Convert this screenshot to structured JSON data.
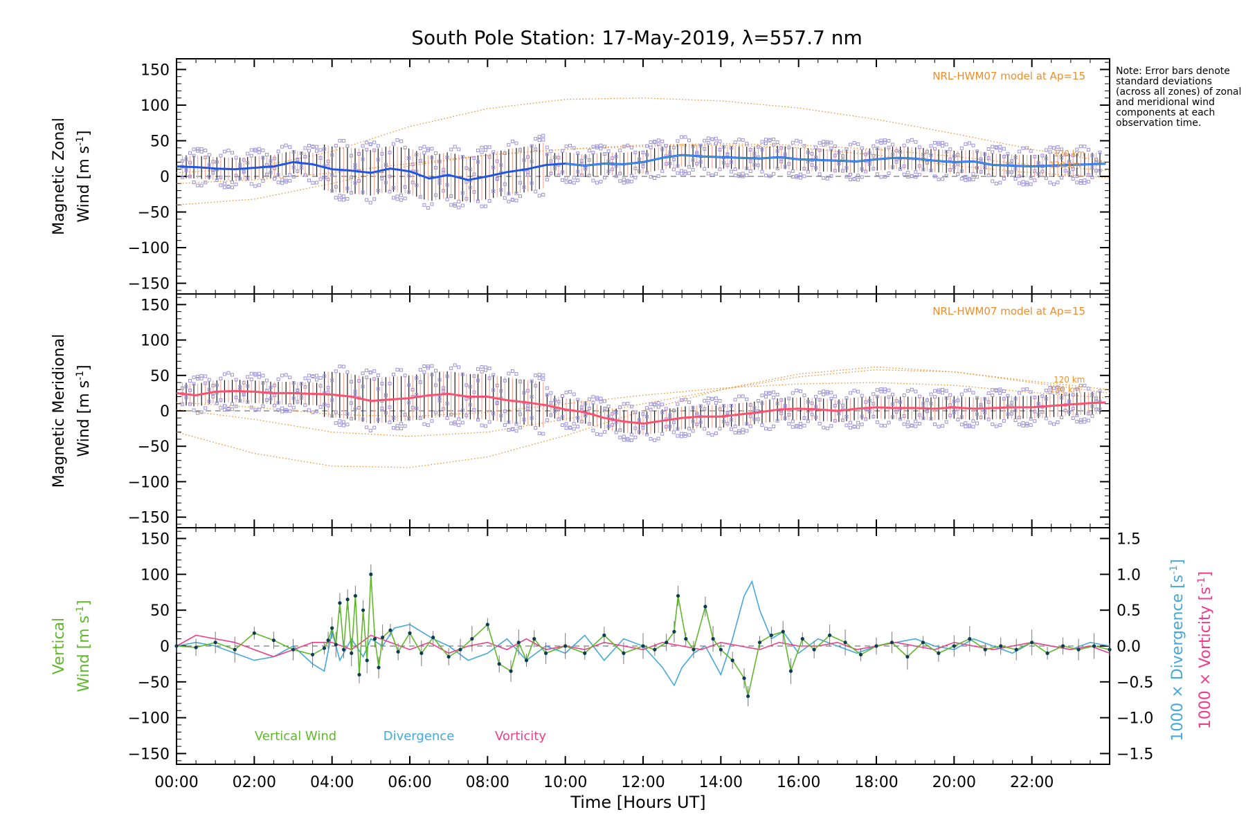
{
  "title": "South Pole Station: 17-May-2019, λ=557.7 nm",
  "note": "Note: Error bars denote standard deviations (across all zones) of zonal and meridional wind components at each observation time.",
  "xlabel": "Time [Hours UT]",
  "xticks": [
    "00:00",
    "02:00",
    "04:00",
    "06:00",
    "08:00",
    "10:00",
    "12:00",
    "14:00",
    "16:00",
    "18:00",
    "20:00",
    "22:00"
  ],
  "yticks": [
    "150",
    "100",
    "50",
    "0",
    "−50",
    "−100",
    "−150"
  ],
  "right_ticks": [
    "1.5",
    "1.0",
    "0.5",
    "0.0",
    "−0.5",
    "−1.0",
    "−1.5"
  ],
  "colors": {
    "zonal_mean": "#1f55e6",
    "zonal_mean_light": "#45b3e6",
    "meridional_mean": "#ff4f6e",
    "model": "#f28c28",
    "zone_points": "#9b92d6",
    "vertical": "#5eb82a",
    "divergence": "#44a8d8",
    "vorticity": "#f03c88",
    "errbar_dark": "#1a1a1a",
    "errbar_light": "#f2a898"
  },
  "chart_data": [
    {
      "type": "line",
      "panel": "zonal",
      "ylabel_line1": "Magnetic Zonal",
      "ylabel_line2": "Wind [m s",
      "ylabel_exp": "-1",
      "ylabel_close": "]",
      "ylim": [
        -165,
        165
      ],
      "xlim": [
        0,
        24
      ],
      "model_label": "NRL-HWM07 model at Ap=15",
      "model_alt_labels": [
        "120 km",
        "130 km"
      ],
      "series": [
        {
          "name": "Zonal mean",
          "x": [
            0,
            0.5,
            1,
            1.5,
            2,
            2.5,
            3,
            3.5,
            4,
            4.5,
            5,
            5.5,
            6,
            6.5,
            7,
            7.5,
            8,
            8.5,
            9,
            9.5,
            10,
            10.5,
            11,
            11.5,
            12,
            12.5,
            13,
            13.5,
            14,
            14.5,
            15,
            15.5,
            16,
            16.5,
            17,
            17.5,
            18,
            18.5,
            19,
            19.5,
            20,
            20.5,
            21,
            21.5,
            22,
            22.5,
            23,
            23.5,
            24
          ],
          "values": [
            14,
            13,
            11,
            10,
            12,
            14,
            20,
            17,
            10,
            8,
            5,
            11,
            7,
            -3,
            2,
            -5,
            0,
            6,
            10,
            16,
            18,
            15,
            18,
            17,
            20,
            26,
            30,
            28,
            27,
            26,
            25,
            27,
            24,
            23,
            22,
            21,
            24,
            26,
            25,
            22,
            20,
            21,
            16,
            15,
            14,
            15,
            16,
            17,
            18
          ]
        },
        {
          "name": "HWM07 120 km",
          "x": [
            0,
            2,
            4,
            6,
            8,
            10,
            12,
            14,
            16,
            18,
            20,
            22,
            24
          ],
          "values": [
            -40,
            -32,
            -10,
            15,
            30,
            38,
            42,
            44,
            40,
            30,
            15,
            5,
            -2
          ]
        },
        {
          "name": "HWM07 130 km",
          "x": [
            0,
            2,
            4,
            6,
            8,
            10,
            12,
            14,
            16,
            18,
            20,
            22,
            24
          ],
          "values": [
            5,
            12,
            35,
            70,
            95,
            108,
            110,
            106,
            96,
            80,
            60,
            38,
            20
          ]
        },
        {
          "name": "HWM07 140 km",
          "x": [
            0,
            2,
            4,
            6,
            8,
            10,
            12,
            14,
            16,
            18,
            20,
            22,
            24
          ],
          "values": [
            -10,
            -5,
            5,
            18,
            30,
            38,
            44,
            46,
            44,
            38,
            28,
            16,
            8
          ]
        }
      ]
    },
    {
      "type": "line",
      "panel": "meridional",
      "ylabel_line1": "Magnetic Meridional",
      "ylabel_line2": "Wind [m s",
      "ylabel_exp": "-1",
      "ylabel_close": "]",
      "ylim": [
        -165,
        165
      ],
      "xlim": [
        0,
        24
      ],
      "model_label": "NRL-HWM07 model at Ap=15",
      "model_alt_labels": [
        "120 km",
        "130 km"
      ],
      "series": [
        {
          "name": "Meridional mean",
          "x": [
            0,
            0.5,
            1,
            1.5,
            2,
            2.5,
            3,
            3.5,
            4,
            4.5,
            5,
            5.5,
            6,
            6.5,
            7,
            7.5,
            8,
            8.5,
            9,
            9.5,
            10,
            10.5,
            11,
            11.5,
            12,
            12.5,
            13,
            13.5,
            14,
            14.5,
            15,
            15.5,
            16,
            16.5,
            17,
            17.5,
            18,
            18.5,
            19,
            19.5,
            20,
            20.5,
            21,
            21.5,
            22,
            22.5,
            23,
            23.5,
            24
          ],
          "values": [
            25,
            22,
            27,
            28,
            27,
            25,
            25,
            24,
            23,
            20,
            14,
            16,
            18,
            22,
            24,
            20,
            20,
            15,
            12,
            8,
            2,
            -2,
            -10,
            -15,
            -18,
            -14,
            -10,
            -8,
            -8,
            -5,
            -2,
            2,
            3,
            2,
            0,
            3,
            5,
            4,
            4,
            3,
            5,
            3,
            4,
            5,
            5,
            7,
            9,
            11,
            12
          ]
        },
        {
          "name": "HWM07 120 km",
          "x": [
            0,
            2,
            4,
            6,
            8,
            10,
            12,
            14,
            16,
            18,
            20,
            22,
            24
          ],
          "values": [
            -30,
            -60,
            -78,
            -80,
            -65,
            -35,
            0,
            30,
            52,
            62,
            55,
            40,
            25
          ]
        },
        {
          "name": "HWM07 130 km",
          "x": [
            0,
            2,
            4,
            6,
            8,
            10,
            12,
            14,
            16,
            18,
            20,
            22,
            24
          ],
          "values": [
            2,
            -12,
            -30,
            -36,
            -30,
            -12,
            10,
            30,
            48,
            58,
            55,
            42,
            30
          ]
        },
        {
          "name": "HWM07 140 km",
          "x": [
            0,
            2,
            4,
            6,
            8,
            10,
            12,
            14,
            16,
            18,
            20,
            22,
            24
          ],
          "values": [
            12,
            5,
            -5,
            -8,
            -2,
            10,
            22,
            32,
            38,
            40,
            36,
            26,
            18
          ]
        }
      ]
    },
    {
      "type": "line",
      "panel": "vertical",
      "ylabel_line1": "Vertical",
      "ylabel_line2": "Wind [m s",
      "ylabel_exp": "-1",
      "ylabel_close": "]",
      "right_label1": "1000 × Divergence [s",
      "right_label2": "1000 × Vorticity [s",
      "right_exp": "-1",
      "right_close": "]",
      "ylim": [
        -165,
        165
      ],
      "y2lim": [
        -1.65,
        1.65
      ],
      "xlim": [
        0,
        24
      ],
      "legend": [
        "Vertical Wind",
        "Divergence",
        "Vorticity"
      ],
      "series": [
        {
          "name": "Vertical Wind",
          "x": [
            0,
            0.5,
            1,
            1.5,
            2,
            2.5,
            3,
            3.5,
            3.8,
            3.9,
            4,
            4.1,
            4.2,
            4.3,
            4.4,
            4.5,
            4.6,
            4.7,
            4.8,
            4.9,
            5.0,
            5.1,
            5.2,
            5.3,
            5.5,
            5.7,
            6,
            6.3,
            6.6,
            7,
            7.3,
            7.6,
            8,
            8.3,
            8.6,
            8.8,
            9,
            9.2,
            9.5,
            10,
            10.5,
            11,
            11.5,
            12,
            12.3,
            12.6,
            12.8,
            12.9,
            13.1,
            13.3,
            13.6,
            13.8,
            14,
            14.3,
            14.6,
            14.7,
            15,
            15.3,
            15.6,
            15.8,
            16.1,
            16.4,
            16.8,
            17.2,
            17.6,
            18,
            18.4,
            18.8,
            19.2,
            19.6,
            20,
            20.4,
            20.8,
            21.2,
            21.6,
            22,
            22.4,
            22.8,
            23.2,
            23.6,
            24
          ],
          "values": [
            0,
            -2,
            5,
            -5,
            18,
            8,
            -5,
            -12,
            -3,
            8,
            25,
            2,
            60,
            -5,
            65,
            -10,
            70,
            -40,
            50,
            -20,
            100,
            10,
            -30,
            12,
            22,
            -8,
            18,
            -10,
            12,
            -15,
            -5,
            10,
            30,
            -25,
            -35,
            5,
            -20,
            10,
            -10,
            0,
            -10,
            15,
            -10,
            0,
            -5,
            5,
            20,
            70,
            10,
            -5,
            55,
            10,
            -5,
            -20,
            -45,
            -70,
            5,
            15,
            20,
            -35,
            10,
            -5,
            15,
            5,
            -12,
            0,
            5,
            -15,
            5,
            -10,
            0,
            10,
            -5,
            0,
            -5,
            5,
            -10,
            0,
            -5,
            0,
            -5
          ]
        },
        {
          "name": "Divergence",
          "x": [
            0,
            0.5,
            1,
            1.5,
            2,
            2.5,
            3,
            3.5,
            3.8,
            4,
            4.2,
            4.5,
            4.8,
            5,
            5.3,
            5.6,
            6,
            6.3,
            6.6,
            7,
            7.5,
            8,
            8.5,
            9,
            9.5,
            10,
            10.5,
            11,
            11.5,
            12,
            12.5,
            12.8,
            13,
            13.3,
            13.6,
            14,
            14.3,
            14.6,
            14.8,
            15,
            15.3,
            15.6,
            16,
            16.5,
            17,
            17.5,
            18,
            18.5,
            19,
            19.5,
            20,
            20.5,
            21,
            21.5,
            22,
            22.5,
            23,
            23.5,
            24
          ],
          "values": [
            0.0,
            0.05,
            0.0,
            -0.1,
            -0.2,
            -0.15,
            0.0,
            -0.25,
            -0.35,
            0.2,
            -0.2,
            0.1,
            -0.15,
            0.1,
            0.0,
            0.25,
            0.3,
            0.2,
            0.1,
            0.0,
            -0.2,
            -0.1,
            0.1,
            -0.2,
            0.0,
            -0.1,
            0.15,
            -0.2,
            0.1,
            0.0,
            -0.3,
            -0.55,
            -0.3,
            -0.1,
            0.0,
            -0.4,
            0.1,
            0.7,
            0.9,
            0.5,
            0.1,
            0.2,
            -0.1,
            0.1,
            0.0,
            -0.1,
            0.0,
            0.05,
            0.1,
            0.0,
            -0.05,
            0.1,
            0.0,
            -0.1,
            0.05,
            0.0,
            -0.05,
            0.05,
            0.0
          ]
        },
        {
          "name": "Vorticity",
          "x": [
            0,
            0.5,
            1,
            1.5,
            2,
            2.5,
            3,
            3.5,
            4,
            4.5,
            5,
            5.5,
            6,
            6.5,
            7,
            7.5,
            8,
            8.5,
            9,
            9.5,
            10,
            10.5,
            11,
            11.5,
            12,
            12.5,
            13,
            13.5,
            14,
            14.5,
            15,
            15.5,
            16,
            16.5,
            17,
            17.5,
            18,
            18.5,
            19,
            19.5,
            20,
            20.5,
            21,
            21.5,
            22,
            22.5,
            23,
            23.5,
            24
          ],
          "values": [
            0.0,
            0.15,
            0.1,
            0.05,
            -0.05,
            -0.15,
            -0.05,
            0.05,
            0.05,
            -0.05,
            0.15,
            0.05,
            -0.05,
            0.05,
            -0.1,
            0.0,
            0.05,
            -0.05,
            0.1,
            -0.05,
            0.0,
            -0.05,
            0.05,
            0.0,
            -0.05,
            0.05,
            0.0,
            -0.05,
            0.05,
            0.0,
            -0.05,
            0.05,
            0.0,
            0.0,
            0.05,
            -0.05,
            0.0,
            0.05,
            0.0,
            -0.05,
            0.05,
            0.0,
            -0.05,
            0.0,
            0.05,
            0.0,
            -0.05,
            0.0,
            -0.1
          ]
        }
      ]
    }
  ]
}
